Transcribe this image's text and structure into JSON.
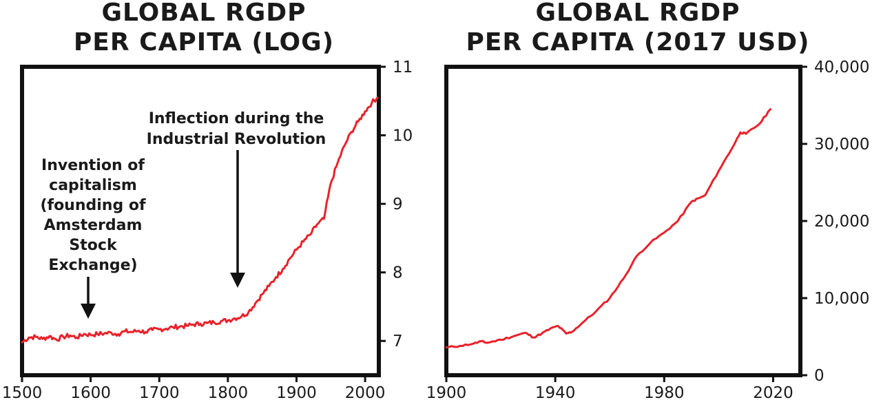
{
  "chart_data": [
    {
      "type": "line",
      "title": "GLOBAL RGDP PER CAPITA (LOG)",
      "title_lines": [
        "GLOBAL RGDP",
        "PER CAPITA (LOG)"
      ],
      "xlabel": "",
      "ylabel": "",
      "xlim": [
        1500,
        2020
      ],
      "ylim": [
        6.5,
        11
      ],
      "x_ticks": [
        1500,
        1600,
        1700,
        1800,
        1900,
        2000
      ],
      "y_ticks": [
        7,
        8,
        9,
        10,
        11
      ],
      "y_axis_side": "right",
      "grid": false,
      "series": [
        {
          "name": "log RGDP per capita",
          "color": "#e8212a",
          "x": [
            1500,
            1510,
            1520,
            1530,
            1540,
            1550,
            1560,
            1570,
            1580,
            1590,
            1600,
            1610,
            1620,
            1630,
            1640,
            1650,
            1660,
            1670,
            1680,
            1690,
            1700,
            1710,
            1720,
            1730,
            1740,
            1750,
            1760,
            1770,
            1780,
            1790,
            1800,
            1810,
            1820,
            1830,
            1840,
            1850,
            1860,
            1870,
            1880,
            1890,
            1900,
            1910,
            1920,
            1930,
            1940,
            1950,
            1960,
            1970,
            1980,
            1990,
            2000,
            2010,
            2018
          ],
          "values": [
            6.98,
            7.05,
            7.06,
            7.03,
            7.07,
            7.02,
            7.06,
            7.08,
            7.05,
            7.1,
            7.09,
            7.1,
            7.11,
            7.12,
            7.1,
            7.14,
            7.13,
            7.15,
            7.13,
            7.16,
            7.17,
            7.18,
            7.2,
            7.21,
            7.22,
            7.24,
            7.25,
            7.26,
            7.27,
            7.29,
            7.3,
            7.33,
            7.36,
            7.42,
            7.55,
            7.68,
            7.8,
            7.93,
            8.05,
            8.2,
            8.33,
            8.45,
            8.55,
            8.7,
            8.78,
            9.3,
            9.6,
            9.85,
            10.05,
            10.2,
            10.35,
            10.48,
            10.55
          ]
        }
      ],
      "annotations": [
        {
          "text_lines": [
            "Invention of",
            "capitalism",
            "(founding of",
            "Amsterdam",
            "Stock",
            "Exchange)"
          ],
          "arrow_x": 1602
        },
        {
          "text_lines": [
            "Inflection during the",
            "Industrial Revolution"
          ],
          "arrow_x": 1820
        }
      ]
    },
    {
      "type": "line",
      "title": "GLOBAL RGDP PER CAPITA (2017 USD)",
      "title_lines": [
        "GLOBAL RGDP",
        "PER CAPITA (2017 USD)"
      ],
      "xlabel": "",
      "ylabel": "",
      "xlim": [
        1900,
        2030
      ],
      "ylim": [
        0,
        40000
      ],
      "x_ticks": [
        1900,
        1940,
        1980,
        2020
      ],
      "y_ticks": [
        0,
        10000,
        20000,
        30000,
        40000
      ],
      "y_tick_labels": [
        "0",
        "10,000",
        "20,000",
        "30,000",
        "40,000"
      ],
      "y_axis_side": "right",
      "grid": false,
      "series": [
        {
          "name": "RGDP per capita",
          "color": "#e8212a",
          "x": [
            1900,
            1905,
            1910,
            1913,
            1915,
            1920,
            1925,
            1929,
            1932,
            1935,
            1938,
            1941,
            1944,
            1946,
            1950,
            1955,
            1960,
            1965,
            1970,
            1975,
            1980,
            1985,
            1990,
            1993,
            1995,
            2000,
            2005,
            2008,
            2010,
            2015,
            2019
          ],
          "values": [
            3600,
            3800,
            4100,
            4400,
            4200,
            4600,
            5100,
            5500,
            4900,
            5400,
            6000,
            6400,
            5400,
            5600,
            6800,
            8300,
            10000,
            12500,
            15500,
            17200,
            18500,
            20000,
            22500,
            23000,
            23300,
            26500,
            29500,
            31500,
            31300,
            32600,
            34500
          ]
        }
      ]
    }
  ]
}
